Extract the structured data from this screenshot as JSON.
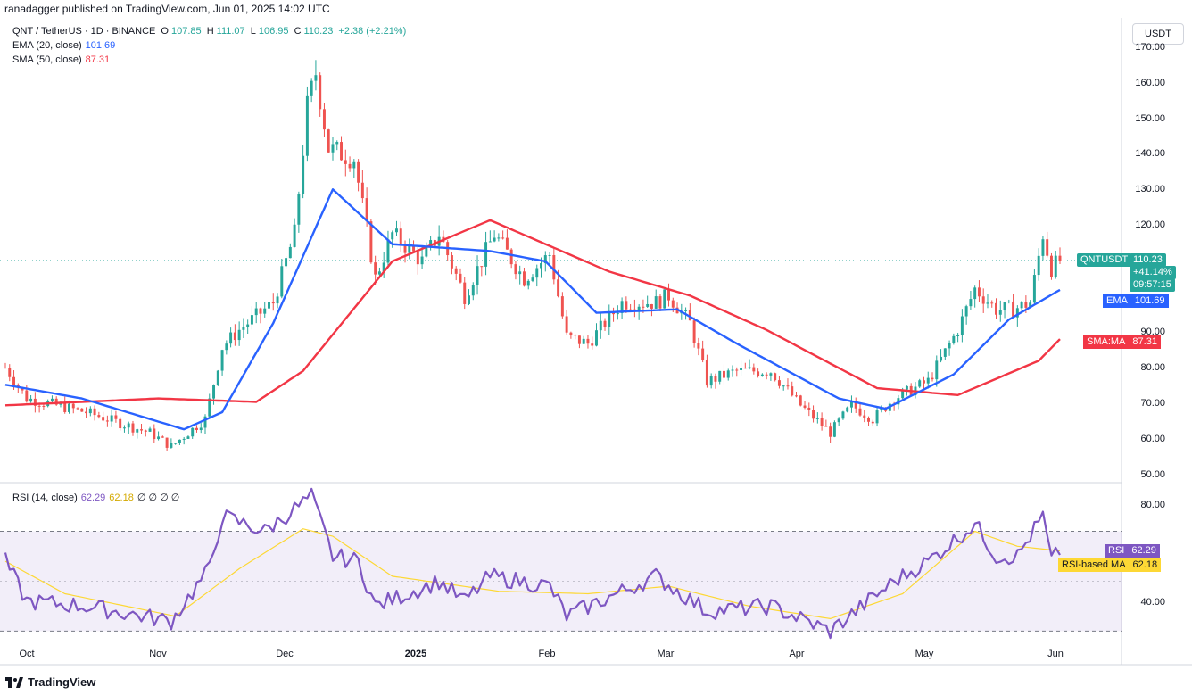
{
  "header": {
    "published": "ranadagger published on TradingView.com, Jun 01, 2025 14:02 UTC"
  },
  "legend": {
    "symbol": "QNT / TetherUS · 1D · BINANCE",
    "o_label": "O",
    "o": "107.85",
    "h_label": "H",
    "h": "111.07",
    "l_label": "L",
    "l": "106.95",
    "c_label": "C",
    "c": "110.23",
    "change": "+2.38 (+2.21%)",
    "ema_label": "EMA (20, close)",
    "ema_value": "101.69",
    "sma_label": "SMA (50, close)",
    "sma_value": "87.31",
    "rsi_label": "RSI (14, close)",
    "rsi_value": "62.29",
    "rsi_ma_value": "62.18",
    "rsi_extra": "∅ ∅ ∅ ∅"
  },
  "currency_button": "USDT",
  "price_axis": [
    "170.00",
    "160.00",
    "150.00",
    "140.00",
    "130.00",
    "120.00",
    "90.00",
    "80.00",
    "70.00",
    "60.00",
    "50.00"
  ],
  "rsi_axis": [
    "80.00",
    "40.00"
  ],
  "time_axis": [
    {
      "label": "Oct",
      "bold": false
    },
    {
      "label": "Nov",
      "bold": false
    },
    {
      "label": "Dec",
      "bold": false
    },
    {
      "label": "2025",
      "bold": true
    },
    {
      "label": "Feb",
      "bold": false
    },
    {
      "label": "Mar",
      "bold": false
    },
    {
      "label": "Apr",
      "bold": false
    },
    {
      "label": "May",
      "bold": false
    },
    {
      "label": "Jun",
      "bold": false
    }
  ],
  "tags": {
    "symbol": "QNTUSDT",
    "price": "110.23",
    "change_pct": "+41.14%",
    "countdown": "09:57:15",
    "ema_name": "EMA",
    "ema": "101.69",
    "sma_name": "SMA:MA",
    "sma": "87.31",
    "rsi_name": "RSI",
    "rsi": "62.29",
    "rsi_ma_name": "RSI-based MA",
    "rsi_ma": "62.18"
  },
  "footer": {
    "brand": "TradingView"
  },
  "colors": {
    "up": "#26a69a",
    "down": "#ef5350",
    "ema": "#2962ff",
    "sma": "#f23645",
    "rsi": "#7e57c2",
    "rsi_ma": "#fdd835"
  },
  "chart_data": {
    "type": "candlestick",
    "symbol": "QNT / TetherUS",
    "interval": "1D",
    "x_range": [
      "2024-09-26",
      "2025-06-01"
    ],
    "ylim": [
      47,
      174
    ],
    "rsi_ylim": [
      28,
      87
    ],
    "rsi_band": [
      30,
      70
    ],
    "price_keypoints": [
      {
        "date": "2024-09-26",
        "close": 79
      },
      {
        "date": "2024-10-01",
        "close": 70
      },
      {
        "date": "2024-10-15",
        "close": 66
      },
      {
        "date": "2024-10-30",
        "close": 60
      },
      {
        "date": "2024-11-04",
        "close": 56
      },
      {
        "date": "2024-11-12",
        "close": 64
      },
      {
        "date": "2024-11-16",
        "close": 85
      },
      {
        "date": "2024-11-20",
        "close": 90
      },
      {
        "date": "2024-11-28",
        "close": 98
      },
      {
        "date": "2024-12-03",
        "close": 118
      },
      {
        "date": "2024-12-06",
        "close": 155
      },
      {
        "date": "2024-12-08",
        "close": 165
      },
      {
        "date": "2024-12-11",
        "close": 143
      },
      {
        "date": "2024-12-17",
        "close": 140
      },
      {
        "date": "2024-12-22",
        "close": 105
      },
      {
        "date": "2024-12-26",
        "close": 118
      },
      {
        "date": "2025-01-02",
        "close": 110
      },
      {
        "date": "2025-01-06",
        "close": 118
      },
      {
        "date": "2025-01-12",
        "close": 100
      },
      {
        "date": "2025-01-19",
        "close": 118
      },
      {
        "date": "2025-01-26",
        "close": 105
      },
      {
        "date": "2025-02-01",
        "close": 112
      },
      {
        "date": "2025-02-05",
        "close": 88
      },
      {
        "date": "2025-02-10",
        "close": 86
      },
      {
        "date": "2025-02-18",
        "close": 98
      },
      {
        "date": "2025-02-26",
        "close": 98
      },
      {
        "date": "2025-03-01",
        "close": 100
      },
      {
        "date": "2025-03-06",
        "close": 92
      },
      {
        "date": "2025-03-10",
        "close": 75
      },
      {
        "date": "2025-03-17",
        "close": 78
      },
      {
        "date": "2025-03-25",
        "close": 78
      },
      {
        "date": "2025-04-01",
        "close": 68
      },
      {
        "date": "2025-04-08",
        "close": 60
      },
      {
        "date": "2025-04-13",
        "close": 68
      },
      {
        "date": "2025-04-18",
        "close": 64
      },
      {
        "date": "2025-04-23",
        "close": 70
      },
      {
        "date": "2025-05-01",
        "close": 75
      },
      {
        "date": "2025-05-08",
        "close": 90
      },
      {
        "date": "2025-05-12",
        "close": 102
      },
      {
        "date": "2025-05-17",
        "close": 96
      },
      {
        "date": "2025-05-21",
        "close": 96
      },
      {
        "date": "2025-05-25",
        "close": 98
      },
      {
        "date": "2025-05-28",
        "close": 118
      },
      {
        "date": "2025-05-30",
        "close": 108
      },
      {
        "date": "2025-06-01",
        "close": 110.23
      }
    ],
    "ema20_keypoints": [
      {
        "date": "2024-09-26",
        "value": 74
      },
      {
        "date": "2024-10-14",
        "value": 70
      },
      {
        "date": "2024-11-07",
        "value": 61
      },
      {
        "date": "2024-11-16",
        "value": 66
      },
      {
        "date": "2024-11-28",
        "value": 92
      },
      {
        "date": "2024-12-12",
        "value": 131
      },
      {
        "date": "2024-12-26",
        "value": 115
      },
      {
        "date": "2025-01-18",
        "value": 113
      },
      {
        "date": "2025-01-31",
        "value": 110
      },
      {
        "date": "2025-02-12",
        "value": 95
      },
      {
        "date": "2025-03-03",
        "value": 96
      },
      {
        "date": "2025-03-17",
        "value": 86
      },
      {
        "date": "2025-04-10",
        "value": 70
      },
      {
        "date": "2025-04-21",
        "value": 67
      },
      {
        "date": "2025-05-07",
        "value": 77
      },
      {
        "date": "2025-05-20",
        "value": 93
      },
      {
        "date": "2025-06-01",
        "value": 101.69
      }
    ],
    "sma50_keypoints": [
      {
        "date": "2024-09-26",
        "value": 68
      },
      {
        "date": "2024-11-01",
        "value": 70
      },
      {
        "date": "2024-11-24",
        "value": 69
      },
      {
        "date": "2024-12-05",
        "value": 78
      },
      {
        "date": "2024-12-26",
        "value": 110
      },
      {
        "date": "2025-01-18",
        "value": 122
      },
      {
        "date": "2025-02-15",
        "value": 107
      },
      {
        "date": "2025-03-06",
        "value": 100
      },
      {
        "date": "2025-03-24",
        "value": 90
      },
      {
        "date": "2025-04-19",
        "value": 73
      },
      {
        "date": "2025-05-08",
        "value": 71
      },
      {
        "date": "2025-05-27",
        "value": 81
      },
      {
        "date": "2025-06-01",
        "value": 87.31
      }
    ],
    "rsi14_keypoints": [
      {
        "date": "2024-09-26",
        "value": 58
      },
      {
        "date": "2024-10-01",
        "value": 42
      },
      {
        "date": "2024-10-15",
        "value": 40
      },
      {
        "date": "2024-11-04",
        "value": 34
      },
      {
        "date": "2024-11-13",
        "value": 55
      },
      {
        "date": "2024-11-16",
        "value": 76
      },
      {
        "date": "2024-11-26",
        "value": 70
      },
      {
        "date": "2024-12-07",
        "value": 84
      },
      {
        "date": "2024-12-12",
        "value": 60
      },
      {
        "date": "2024-12-18",
        "value": 58
      },
      {
        "date": "2024-12-22",
        "value": 40
      },
      {
        "date": "2025-01-06",
        "value": 50
      },
      {
        "date": "2025-01-12",
        "value": 42
      },
      {
        "date": "2025-01-18",
        "value": 52
      },
      {
        "date": "2025-02-01",
        "value": 48
      },
      {
        "date": "2025-02-05",
        "value": 36
      },
      {
        "date": "2025-02-26",
        "value": 52
      },
      {
        "date": "2025-03-10",
        "value": 38
      },
      {
        "date": "2025-03-25",
        "value": 40
      },
      {
        "date": "2025-04-08",
        "value": 30
      },
      {
        "date": "2025-04-23",
        "value": 50
      },
      {
        "date": "2025-05-01",
        "value": 58
      },
      {
        "date": "2025-05-12",
        "value": 73
      },
      {
        "date": "2025-05-17",
        "value": 60
      },
      {
        "date": "2025-05-22",
        "value": 60
      },
      {
        "date": "2025-05-28",
        "value": 76
      },
      {
        "date": "2025-05-30",
        "value": 58
      },
      {
        "date": "2025-06-01",
        "value": 62.29
      }
    ],
    "rsi_ma_keypoints": [
      {
        "date": "2024-09-26",
        "value": 58
      },
      {
        "date": "2024-10-10",
        "value": 45
      },
      {
        "date": "2024-11-05",
        "value": 36
      },
      {
        "date": "2024-11-20",
        "value": 55
      },
      {
        "date": "2024-12-05",
        "value": 71
      },
      {
        "date": "2024-12-12",
        "value": 68
      },
      {
        "date": "2024-12-26",
        "value": 52
      },
      {
        "date": "2025-01-20",
        "value": 46
      },
      {
        "date": "2025-02-10",
        "value": 45
      },
      {
        "date": "2025-03-01",
        "value": 48
      },
      {
        "date": "2025-03-20",
        "value": 40
      },
      {
        "date": "2025-04-08",
        "value": 35
      },
      {
        "date": "2025-04-25",
        "value": 45
      },
      {
        "date": "2025-05-12",
        "value": 70
      },
      {
        "date": "2025-05-22",
        "value": 64
      },
      {
        "date": "2025-06-01",
        "value": 62.18
      }
    ]
  }
}
